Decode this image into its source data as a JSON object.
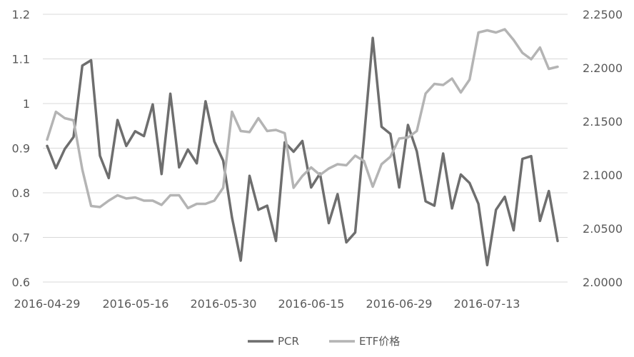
{
  "chart_data": {
    "type": "line",
    "title": "",
    "grid": "horizontal",
    "legend_position": "bottom",
    "x_tick_labels": [
      "2016-04-29",
      "2016-05-16",
      "2016-05-30",
      "2016-06-15",
      "2016-06-29",
      "2016-07-13"
    ],
    "y_left": {
      "ticks": [
        "0.6",
        "0.7",
        "0.8",
        "0.9",
        "1",
        "1.1",
        "1.2"
      ],
      "range": [
        0.6,
        1.2
      ]
    },
    "y_right": {
      "ticks": [
        "2.0000",
        "2.0500",
        "2.1000",
        "2.1500",
        "2.2000",
        "2.2500"
      ],
      "range": [
        2.0,
        2.25
      ]
    },
    "series": [
      {
        "name": "PCR",
        "axis": "left",
        "color": "#6e6e6e",
        "values": [
          0.905,
          0.855,
          0.898,
          0.925,
          1.085,
          1.097,
          0.883,
          0.833,
          0.963,
          0.905,
          0.938,
          0.927,
          0.998,
          0.842,
          1.022,
          0.857,
          0.897,
          0.866,
          1.005,
          0.915,
          0.872,
          0.745,
          0.648,
          0.838,
          0.762,
          0.771,
          0.692,
          0.913,
          0.892,
          0.916,
          0.812,
          0.843,
          0.732,
          0.797,
          0.689,
          0.711,
          0.922,
          1.147,
          0.948,
          0.932,
          0.812,
          0.952,
          0.893,
          0.781,
          0.771,
          0.888,
          0.765,
          0.841,
          0.822,
          0.775,
          0.638,
          0.762,
          0.791,
          0.716,
          0.876,
          0.882,
          0.737,
          0.804,
          0.692
        ]
      },
      {
        "name": "ETF价格",
        "axis": "right",
        "color": "#b4b4b4",
        "values": [
          2.133,
          2.159,
          2.153,
          2.151,
          2.105,
          2.071,
          2.07,
          2.076,
          2.081,
          2.078,
          2.079,
          2.076,
          2.076,
          2.072,
          2.081,
          2.081,
          2.069,
          2.073,
          2.073,
          2.076,
          2.088,
          2.159,
          2.141,
          2.14,
          2.153,
          2.141,
          2.142,
          2.139,
          2.088,
          2.099,
          2.107,
          2.1,
          2.106,
          2.11,
          2.109,
          2.118,
          2.113,
          2.089,
          2.11,
          2.117,
          2.134,
          2.135,
          2.141,
          2.176,
          2.185,
          2.184,
          2.19,
          2.177,
          2.189,
          2.233,
          2.235,
          2.233,
          2.236,
          2.226,
          2.214,
          2.208,
          2.219,
          2.199,
          2.201
        ]
      }
    ]
  }
}
